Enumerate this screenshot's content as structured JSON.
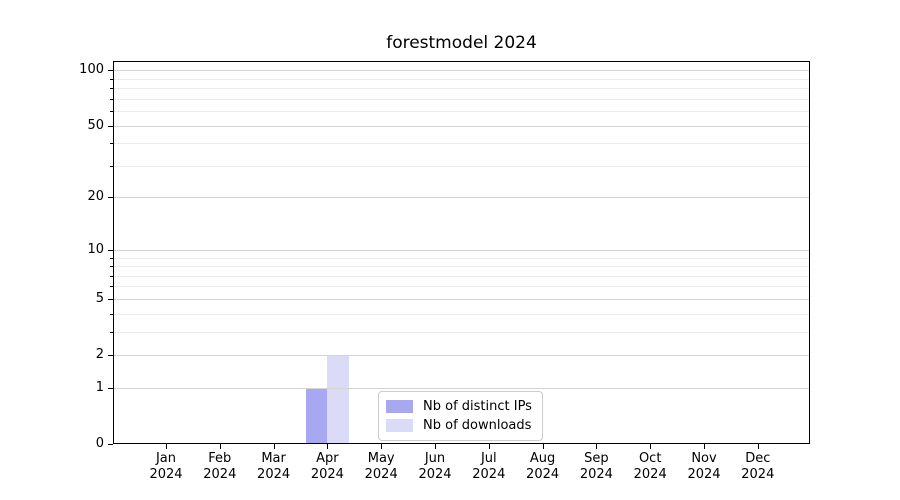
{
  "chart_data": {
    "type": "bar",
    "title": "forestmodel 2024",
    "xlabel": "",
    "ylabel": "",
    "categories": [
      "Jan 2024",
      "Feb 2024",
      "Mar 2024",
      "Apr 2024",
      "May 2024",
      "Jun 2024",
      "Jul 2024",
      "Aug 2024",
      "Sep 2024",
      "Oct 2024",
      "Nov 2024",
      "Dec 2024"
    ],
    "series": [
      {
        "name": "Nb of distinct IPs",
        "color": "#a7a7f2",
        "values": [
          0,
          0,
          0,
          1,
          0,
          0,
          0,
          0,
          0,
          0,
          0,
          0
        ]
      },
      {
        "name": "Nb of downloads",
        "color": "#dbdbf8",
        "values": [
          0,
          0,
          0,
          2,
          0,
          0,
          0,
          0,
          0,
          0,
          0,
          0
        ]
      }
    ],
    "yscale": "log1p",
    "ylim": [
      0,
      112
    ],
    "y_ticks_major": [
      0,
      1,
      2,
      5,
      10,
      20,
      50,
      100
    ],
    "y_ticks_minor": [
      3,
      4,
      6,
      7,
      8,
      9,
      30,
      40,
      60,
      70,
      80,
      90
    ],
    "grid": "horizontal, major and minor",
    "legend_position": "lower center inside plot",
    "legend_entries": [
      "Nb of distinct IPs",
      "Nb of downloads"
    ],
    "frame_color": "#000000",
    "background_color": "#ffffff"
  }
}
